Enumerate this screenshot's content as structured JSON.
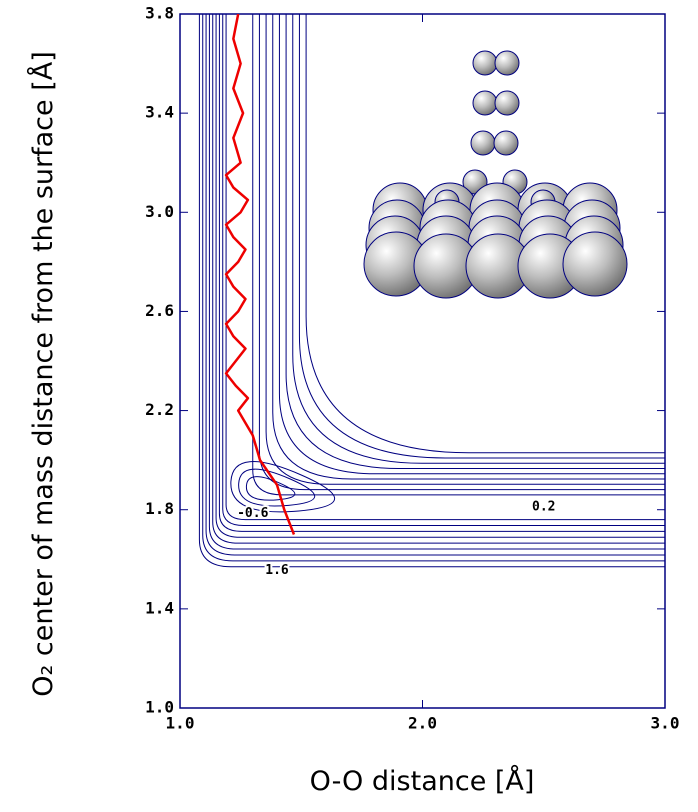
{
  "chart_data": {
    "type": "contour",
    "xlabel": "O-O distance [Å]",
    "ylabel": "O₂ center of mass distance from the surface [Å]",
    "xlim": [
      1.0,
      3.0
    ],
    "ylim": [
      1.0,
      3.8
    ],
    "xticks": [
      {
        "value": 1.0,
        "label": "1.0"
      },
      {
        "value": 2.0,
        "label": "2.0"
      },
      {
        "value": 3.0,
        "label": "3.0"
      }
    ],
    "yticks": [
      {
        "value": 1.0,
        "label": "1.0"
      },
      {
        "value": 1.4,
        "label": "1.4"
      },
      {
        "value": 1.8,
        "label": "1.8"
      },
      {
        "value": 2.2,
        "label": "2.2"
      },
      {
        "value": 2.6,
        "label": "2.6"
      },
      {
        "value": 3.0,
        "label": "3.0"
      },
      {
        "value": 3.4,
        "label": "3.4"
      },
      {
        "value": 3.8,
        "label": "3.8"
      }
    ],
    "levels": [
      -0.6,
      -0.4,
      -0.2,
      0,
      0.2,
      0.4,
      0.6,
      0.8,
      1.0,
      1.2,
      1.4,
      1.6
    ],
    "contour_color": "#000080",
    "contour_labels": [
      {
        "text": "-0.6",
        "x": 1.3,
        "y": 1.785
      },
      {
        "text": "0.2",
        "x": 2.5,
        "y": 1.81
      },
      {
        "text": "1.6",
        "x": 1.4,
        "y": 1.555
      }
    ],
    "trajectory": {
      "color": "#ee0000",
      "x": [
        1.24,
        1.22,
        1.25,
        1.22,
        1.26,
        1.22,
        1.25,
        1.19,
        1.22,
        1.28,
        1.25,
        1.19,
        1.22,
        1.27,
        1.24,
        1.19,
        1.22,
        1.27,
        1.24,
        1.19,
        1.22,
        1.27,
        1.23,
        1.19,
        1.23,
        1.28,
        1.24,
        1.3,
        1.33,
        1.4,
        1.43,
        1.47
      ],
      "y": [
        3.8,
        3.7,
        3.6,
        3.5,
        3.4,
        3.3,
        3.2,
        3.15,
        3.1,
        3.05,
        3.0,
        2.95,
        2.9,
        2.85,
        2.8,
        2.75,
        2.7,
        2.65,
        2.6,
        2.55,
        2.5,
        2.45,
        2.4,
        2.35,
        2.3,
        2.25,
        2.2,
        2.1,
        2.0,
        1.9,
        1.8,
        1.7
      ]
    }
  }
}
